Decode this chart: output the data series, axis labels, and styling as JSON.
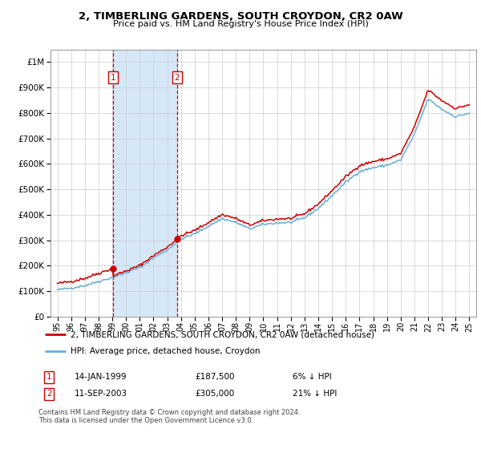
{
  "title": "2, TIMBERLING GARDENS, SOUTH CROYDON, CR2 0AW",
  "subtitle": "Price paid vs. HM Land Registry's House Price Index (HPI)",
  "legend_line1": "2, TIMBERLING GARDENS, SOUTH CROYDON, CR2 0AW (detached house)",
  "legend_line2": "HPI: Average price, detached house, Croydon",
  "sale1_date": "14-JAN-1999",
  "sale1_price": 187500,
  "sale1_pct": "6% ↓ HPI",
  "sale2_date": "11-SEP-2003",
  "sale2_price": 305000,
  "sale2_pct": "21% ↓ HPI",
  "footnote": "Contains HM Land Registry data © Crown copyright and database right 2024.\nThis data is licensed under the Open Government Licence v3.0.",
  "sale1_x": 1999.04,
  "sale2_x": 2003.71,
  "ylim_min": 0,
  "ylim_max": 1050000,
  "xlim_min": 1994.5,
  "xlim_max": 2025.5,
  "hpi_color": "#6aaed6",
  "price_color": "#cc0000",
  "shade_color": "#d6e8f7",
  "grid_color": "#cccccc",
  "marker_box_color": "#cc0000",
  "bg_color": "#ffffff",
  "hpi_anchors": [
    105000,
    112000,
    122000,
    138000,
    153000,
    172000,
    193000,
    230000,
    262000,
    305000,
    325000,
    355000,
    385000,
    370000,
    345000,
    362000,
    368000,
    370000,
    388000,
    425000,
    475000,
    528000,
    570000,
    585000,
    595000,
    615000,
    715000,
    855000,
    815000,
    785000,
    800000
  ],
  "hpi_years": [
    1995,
    1996,
    1997,
    1998,
    1999,
    2000,
    2001,
    2002,
    2003,
    2004,
    2005,
    2006,
    2007,
    2008,
    2009,
    2010,
    2011,
    2012,
    2013,
    2014,
    2015,
    2016,
    2017,
    2018,
    2019,
    2020,
    2021,
    2022,
    2023,
    2024,
    2025
  ]
}
